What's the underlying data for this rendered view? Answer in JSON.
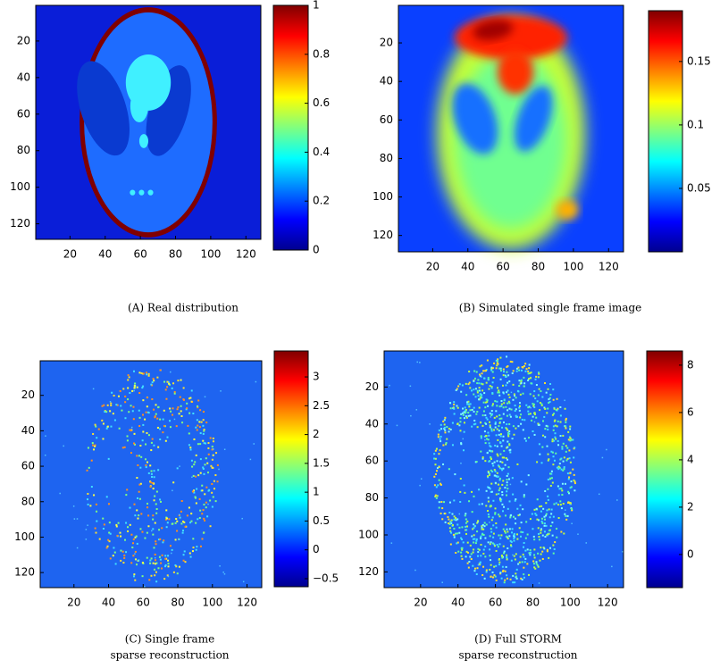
{
  "chart_data": [
    {
      "type": "heatmap",
      "colormap": "jet",
      "caption_lines": [
        "(A) Real distribution"
      ],
      "xlim": [
        0.5,
        128.5
      ],
      "ylim": [
        128.5,
        0.5
      ],
      "xticks": [
        20,
        40,
        60,
        80,
        100,
        120
      ],
      "yticks": [
        20,
        40,
        60,
        80,
        100,
        120
      ],
      "clim": [
        0,
        1
      ],
      "cticks": [
        0,
        0.2,
        0.4,
        0.6,
        0.8,
        1
      ],
      "image": "phantom"
    },
    {
      "type": "heatmap",
      "colormap": "jet",
      "caption_lines": [
        "(B) Simulated single frame image"
      ],
      "xlim": [
        0.5,
        128.5
      ],
      "ylim": [
        128.5,
        0.5
      ],
      "xticks": [
        20,
        40,
        60,
        80,
        100,
        120
      ],
      "yticks": [
        20,
        40,
        60,
        80,
        100,
        120
      ],
      "clim": [
        0,
        0.19
      ],
      "cticks": [
        0.05,
        0.1,
        0.15
      ],
      "image": "blurred"
    },
    {
      "type": "heatmap",
      "colormap": "jet",
      "caption_lines": [
        "(C) Single frame",
        "sparse reconstruction"
      ],
      "xlim": [
        0.5,
        128.5
      ],
      "ylim": [
        128.5,
        0.5
      ],
      "xticks": [
        20,
        40,
        60,
        80,
        100,
        120
      ],
      "yticks": [
        20,
        40,
        60,
        80,
        100,
        120
      ],
      "clim": [
        -0.64,
        3.45
      ],
      "cticks": [
        {
          "value": -0.5,
          "label": "−0.5"
        },
        0,
        0.5,
        1,
        1.5,
        2,
        2.5,
        3
      ],
      "image": "sparse"
    },
    {
      "type": "heatmap",
      "colormap": "jet",
      "caption_lines": [
        "(D) Full STORM",
        "sparse reconstruction"
      ],
      "xlim": [
        0.5,
        128.5
      ],
      "ylim": [
        128.5,
        0.5
      ],
      "xticks": [
        20,
        40,
        60,
        80,
        100,
        120
      ],
      "yticks": [
        20,
        40,
        60,
        80,
        100,
        120
      ],
      "clim": [
        -1.4,
        8.6
      ],
      "cticks": [
        0,
        2,
        4,
        6,
        8
      ],
      "image": "dense"
    }
  ]
}
